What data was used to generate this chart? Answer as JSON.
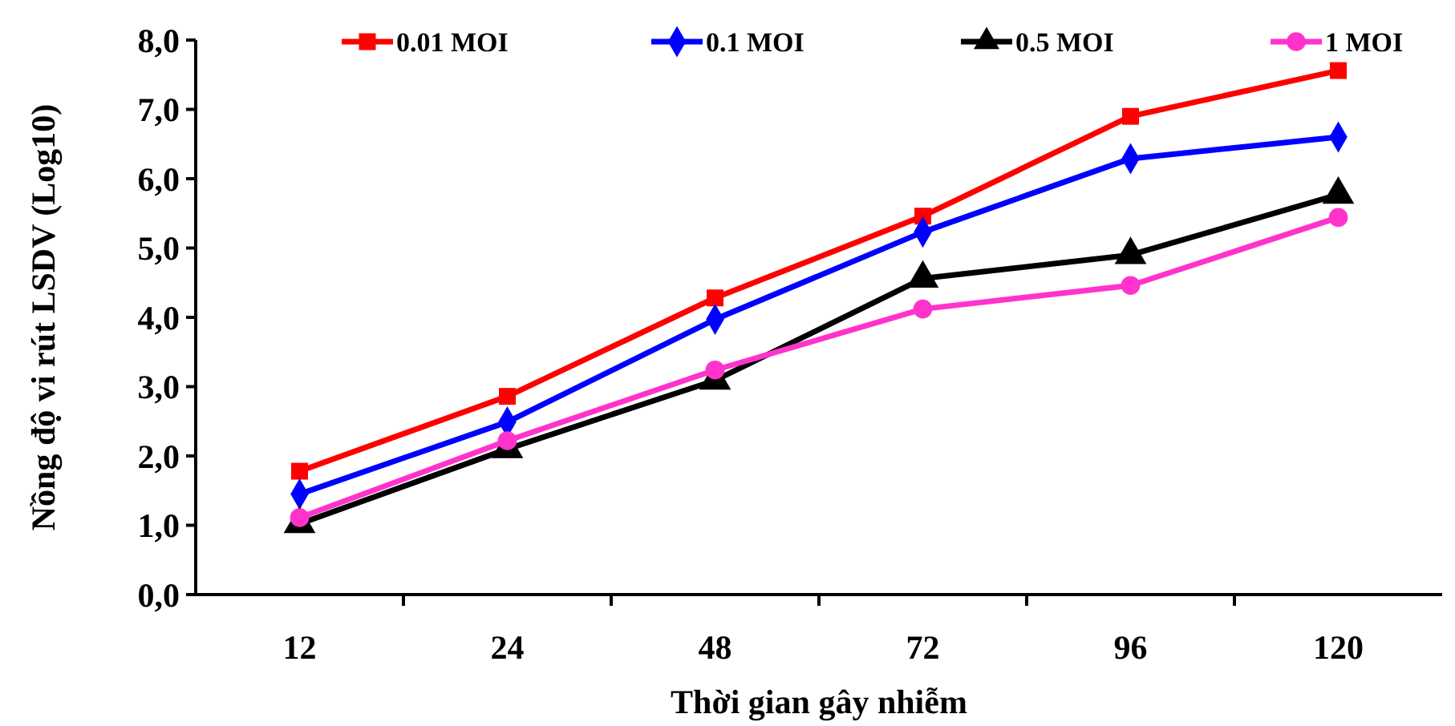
{
  "chart_data": {
    "type": "line",
    "xlabel": "Thời gian gây nhiễm",
    "ylabel": "Nồng độ vi rút LSDV  (Log10)",
    "categories": [
      "12",
      "24",
      "48",
      "72",
      "96",
      "120"
    ],
    "ylim": [
      0,
      8
    ],
    "yticks": [
      {
        "value": 0,
        "label": "0,0"
      },
      {
        "value": 1,
        "label": "1,0"
      },
      {
        "value": 2,
        "label": "2,0"
      },
      {
        "value": 3,
        "label": "3,0"
      },
      {
        "value": 4,
        "label": "4,0"
      },
      {
        "value": 5,
        "label": "5,0"
      },
      {
        "value": 6,
        "label": "6,0"
      },
      {
        "value": 7,
        "label": "7,0"
      },
      {
        "value": 8,
        "label": "8,0"
      }
    ],
    "series": [
      {
        "name": "0.01 MOI",
        "color": "#ff0000",
        "marker": "square",
        "values": [
          1.78,
          2.86,
          4.28,
          5.46,
          6.9,
          7.56
        ]
      },
      {
        "name": "0.1 MOI",
        "color": "#0000ff",
        "marker": "diamond",
        "values": [
          1.45,
          2.49,
          3.97,
          5.23,
          6.29,
          6.6
        ]
      },
      {
        "name": "0.5 MOI",
        "color": "#000000",
        "marker": "triangle",
        "values": [
          1.02,
          2.1,
          3.09,
          4.56,
          4.9,
          5.77
        ]
      },
      {
        "name": "1 MOI",
        "color": "#ff33cc",
        "marker": "circle",
        "values": [
          1.11,
          2.22,
          3.24,
          4.12,
          4.46,
          5.44
        ]
      }
    ],
    "legend": "top",
    "grid": false,
    "line_style": "solid"
  }
}
